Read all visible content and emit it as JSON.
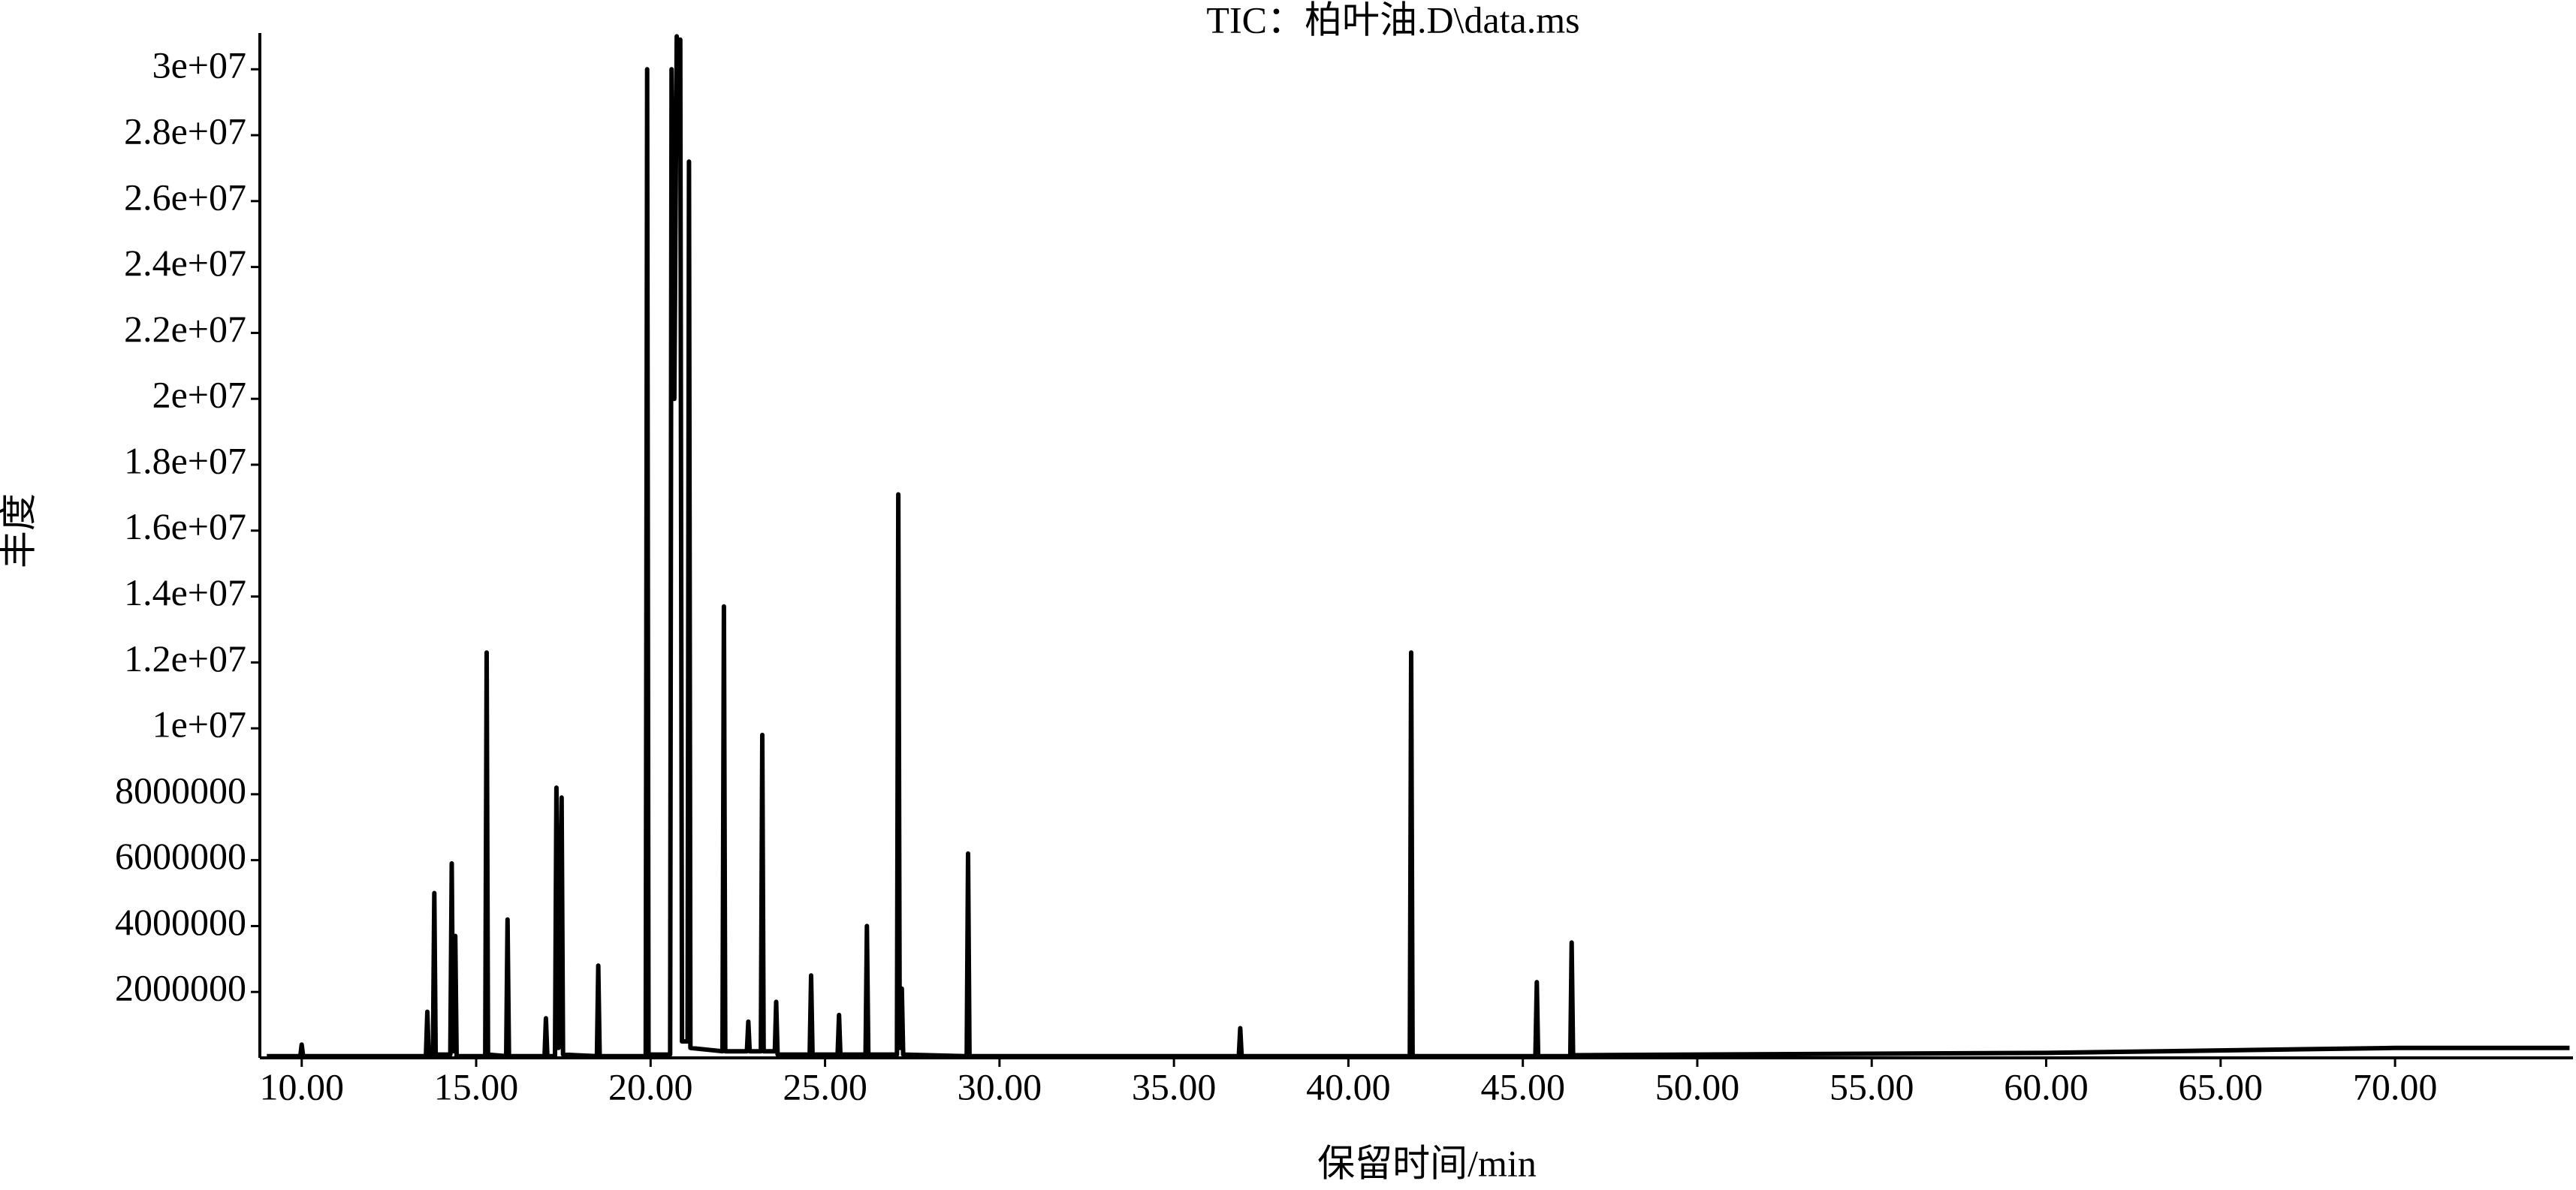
{
  "chart_data": {
    "type": "line",
    "title": "TIC：柏叶油.D\\data.ms",
    "xlabel": "保留时间/min",
    "ylabel": "丰度",
    "color": "#000000",
    "xlim": [
      8.8,
      75.1
    ],
    "ylim": [
      0,
      31100000
    ],
    "xticks": [
      {
        "value": 10,
        "label": "10.00"
      },
      {
        "value": 15,
        "label": "15.00"
      },
      {
        "value": 20,
        "label": "20.00"
      },
      {
        "value": 25,
        "label": "25.00"
      },
      {
        "value": 30,
        "label": "30.00"
      },
      {
        "value": 35,
        "label": "35.00"
      },
      {
        "value": 40,
        "label": "40.00"
      },
      {
        "value": 45,
        "label": "45.00"
      },
      {
        "value": 50,
        "label": "50.00"
      },
      {
        "value": 55,
        "label": "55.00"
      },
      {
        "value": 60,
        "label": "60.00"
      },
      {
        "value": 65,
        "label": "65.00"
      },
      {
        "value": 70,
        "label": "70.00"
      }
    ],
    "yticks": [
      2000000,
      4000000,
      6000000,
      8000000,
      {
        "value": 10000000,
        "label": "1e+07"
      },
      {
        "value": 12000000,
        "label": "1.2e+07"
      },
      {
        "value": 14000000,
        "label": "1.4e+07"
      },
      {
        "value": 16000000,
        "label": "1.6e+07"
      },
      {
        "value": 18000000,
        "label": "1.8e+07"
      },
      {
        "value": 20000000,
        "label": "2e+07"
      },
      {
        "value": 22000000,
        "label": "2.2e+07"
      },
      {
        "value": 24000000,
        "label": "2.4e+07"
      },
      {
        "value": 26000000,
        "label": "2.6e+07"
      },
      {
        "value": 28000000,
        "label": "2.8e+07"
      },
      {
        "value": 30000000,
        "label": "3e+07"
      }
    ],
    "x": [
      9.0,
      9.96,
      10.0,
      10.04,
      13.56,
      13.6,
      13.64,
      13.76,
      13.8,
      13.84,
      14.26,
      14.3,
      14.34,
      14.4,
      14.44,
      15.26,
      15.3,
      15.34,
      15.86,
      15.9,
      15.94,
      16.96,
      17.0,
      17.04,
      17.26,
      17.3,
      17.36,
      17.45,
      17.49,
      18.46,
      18.5,
      18.54,
      19.86,
      19.9,
      19.94,
      20.56,
      20.6,
      20.68,
      20.75,
      20.8,
      20.85,
      20.9,
      21.06,
      21.1,
      21.14,
      22.06,
      22.1,
      22.14,
      22.76,
      22.8,
      22.84,
      23.16,
      23.2,
      23.24,
      23.56,
      23.6,
      23.64,
      24.56,
      24.6,
      24.64,
      25.36,
      25.4,
      25.44,
      26.16,
      26.2,
      26.24,
      27.06,
      27.1,
      27.14,
      27.2,
      27.24,
      29.06,
      29.1,
      29.14,
      36.86,
      36.9,
      36.94,
      41.76,
      41.8,
      41.84,
      45.36,
      45.4,
      45.44,
      46.36,
      46.4,
      46.44,
      60.0,
      70.0,
      75.0
    ],
    "values": [
      50000,
      50000,
      400000,
      50000,
      50000,
      1400000,
      100000,
      100000,
      5000000,
      100000,
      100000,
      5900000,
      200000,
      3700000,
      50000,
      50000,
      12300000,
      100000,
      50000,
      4200000,
      50000,
      50000,
      1200000,
      50000,
      50000,
      8200000,
      300000,
      7900000,
      100000,
      50000,
      2800000,
      50000,
      50000,
      30000000,
      100000,
      100000,
      30000000,
      20000000,
      31000000,
      29000000,
      30900000,
      500000,
      500000,
      27200000,
      300000,
      200000,
      13700000,
      200000,
      200000,
      1100000,
      200000,
      200000,
      9800000,
      200000,
      200000,
      1700000,
      100000,
      100000,
      2500000,
      100000,
      100000,
      1300000,
      100000,
      100000,
      4000000,
      100000,
      100000,
      17100000,
      300000,
      2100000,
      100000,
      50000,
      6200000,
      50000,
      50000,
      900000,
      50000,
      50000,
      12300000,
      50000,
      50000,
      2300000,
      50000,
      50000,
      3500000,
      80000,
      150000,
      300000,
      300000
    ]
  }
}
